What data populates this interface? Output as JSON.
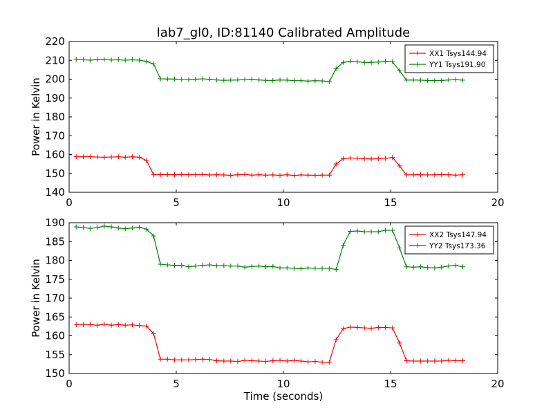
{
  "figure": {
    "title": "lab7_gl0, ID:81140 Calibrated Amplitude",
    "xlabel": "Time (seconds)",
    "colors": {
      "red": "#ff0000",
      "green": "#008000",
      "axes": "#000000"
    }
  },
  "chart_data": [
    {
      "type": "line",
      "ylabel": "Power in Kelvin",
      "xlim": [
        0,
        20
      ],
      "ylim": [
        140,
        220
      ],
      "xticks": [
        0,
        5,
        10,
        15,
        20
      ],
      "yticks": [
        140,
        150,
        160,
        170,
        180,
        190,
        200,
        210,
        220
      ],
      "grid": false,
      "legend_position": "top-right",
      "x": [
        0.33,
        0.66,
        0.98,
        1.31,
        1.64,
        1.97,
        2.3,
        2.62,
        2.95,
        3.28,
        3.61,
        3.94,
        4.26,
        4.59,
        4.92,
        5.25,
        5.58,
        5.9,
        6.23,
        6.56,
        6.89,
        7.22,
        7.54,
        7.87,
        8.2,
        8.53,
        8.86,
        9.18,
        9.51,
        9.84,
        10.17,
        10.5,
        10.82,
        11.15,
        11.48,
        11.81,
        12.14,
        12.46,
        12.79,
        13.12,
        13.45,
        13.78,
        14.1,
        14.43,
        14.76,
        15.09,
        15.42,
        15.74,
        16.07,
        16.4,
        16.73,
        17.06,
        17.38,
        17.71,
        18.04,
        18.37
      ],
      "series": [
        {
          "name": "XX1 Tsys144.94",
          "color": "#ff0000",
          "values": [
            158.9,
            158.8,
            158.9,
            158.7,
            158.6,
            158.7,
            158.8,
            158.6,
            158.8,
            158.6,
            156.9,
            149.3,
            149.4,
            149.4,
            149.3,
            149.5,
            149.3,
            149.4,
            149.5,
            149.2,
            149.3,
            149.2,
            149.0,
            149.3,
            149.5,
            149.1,
            149.3,
            149.1,
            149.2,
            149.0,
            149.3,
            148.9,
            149.2,
            149.1,
            149.0,
            149.1,
            149.1,
            155.0,
            157.8,
            158.2,
            158.0,
            157.8,
            157.7,
            157.8,
            158.0,
            158.5,
            154.0,
            149.2,
            149.3,
            149.3,
            149.2,
            149.3,
            149.4,
            149.3,
            149.1,
            149.3
          ]
        },
        {
          "name": "YY1 Tsys191.90",
          "color": "#008000",
          "values": [
            210.6,
            210.3,
            210.1,
            210.4,
            210.5,
            210.2,
            210.3,
            210.1,
            210.3,
            210.1,
            209.4,
            208.1,
            200.2,
            200.1,
            200.1,
            199.8,
            199.7,
            200.0,
            200.2,
            199.9,
            199.6,
            199.4,
            199.5,
            199.6,
            199.8,
            199.9,
            199.6,
            199.4,
            199.3,
            199.6,
            199.5,
            199.2,
            199.2,
            199.0,
            199.2,
            199.1,
            198.6,
            205.6,
            208.9,
            209.5,
            209.2,
            208.9,
            208.9,
            209.1,
            209.5,
            209.2,
            204.5,
            199.5,
            199.6,
            199.5,
            199.3,
            199.2,
            199.3,
            199.6,
            199.8,
            199.5
          ]
        }
      ]
    },
    {
      "type": "line",
      "ylabel": "Power in Kelvin",
      "xlabel": "Time (seconds)",
      "xlim": [
        0,
        20
      ],
      "ylim": [
        150,
        190
      ],
      "xticks": [
        0,
        5,
        10,
        15,
        20
      ],
      "yticks": [
        150,
        155,
        160,
        165,
        170,
        175,
        180,
        185,
        190
      ],
      "grid": false,
      "legend_position": "top-right",
      "x": [
        0.33,
        0.66,
        0.98,
        1.31,
        1.64,
        1.97,
        2.3,
        2.62,
        2.95,
        3.28,
        3.61,
        3.94,
        4.26,
        4.59,
        4.92,
        5.25,
        5.58,
        5.9,
        6.23,
        6.56,
        6.89,
        7.22,
        7.54,
        7.87,
        8.2,
        8.53,
        8.86,
        9.18,
        9.51,
        9.84,
        10.17,
        10.5,
        10.82,
        11.15,
        11.48,
        11.81,
        12.14,
        12.46,
        12.79,
        13.12,
        13.45,
        13.78,
        14.1,
        14.43,
        14.76,
        15.09,
        15.42,
        15.74,
        16.07,
        16.4,
        16.73,
        17.06,
        17.38,
        17.71,
        18.04,
        18.37
      ],
      "series": [
        {
          "name": "XX2 Tsys147.94",
          "color": "#ff0000",
          "values": [
            163.0,
            163.0,
            163.0,
            162.8,
            163.1,
            162.8,
            163.0,
            162.8,
            162.9,
            162.7,
            162.6,
            160.6,
            153.8,
            153.8,
            153.6,
            153.6,
            153.6,
            153.7,
            153.8,
            153.7,
            153.4,
            153.3,
            153.3,
            153.2,
            153.5,
            153.4,
            153.3,
            153.2,
            153.4,
            153.5,
            153.3,
            153.5,
            153.3,
            153.1,
            153.2,
            153.0,
            153.0,
            159.0,
            161.9,
            162.3,
            162.2,
            162.1,
            162.0,
            162.2,
            162.2,
            162.1,
            158.1,
            153.4,
            153.3,
            153.3,
            153.3,
            153.3,
            153.3,
            153.5,
            153.4,
            153.4
          ]
        },
        {
          "name": "YY2 Tsys173.36",
          "color": "#008000",
          "values": [
            188.9,
            188.7,
            188.5,
            188.7,
            189.1,
            188.9,
            188.6,
            188.4,
            188.6,
            188.8,
            188.3,
            186.5,
            179.0,
            178.8,
            178.7,
            178.7,
            178.3,
            178.5,
            178.7,
            178.8,
            178.6,
            178.6,
            178.5,
            178.5,
            178.2,
            178.4,
            178.5,
            178.3,
            178.4,
            178.0,
            178.0,
            177.9,
            177.8,
            178.0,
            177.9,
            177.9,
            177.9,
            177.6,
            184.0,
            187.7,
            187.8,
            187.6,
            187.6,
            187.6,
            188.0,
            188.0,
            183.3,
            178.3,
            178.2,
            178.3,
            178.1,
            178.0,
            178.2,
            178.5,
            178.7,
            178.3
          ]
        }
      ]
    }
  ]
}
